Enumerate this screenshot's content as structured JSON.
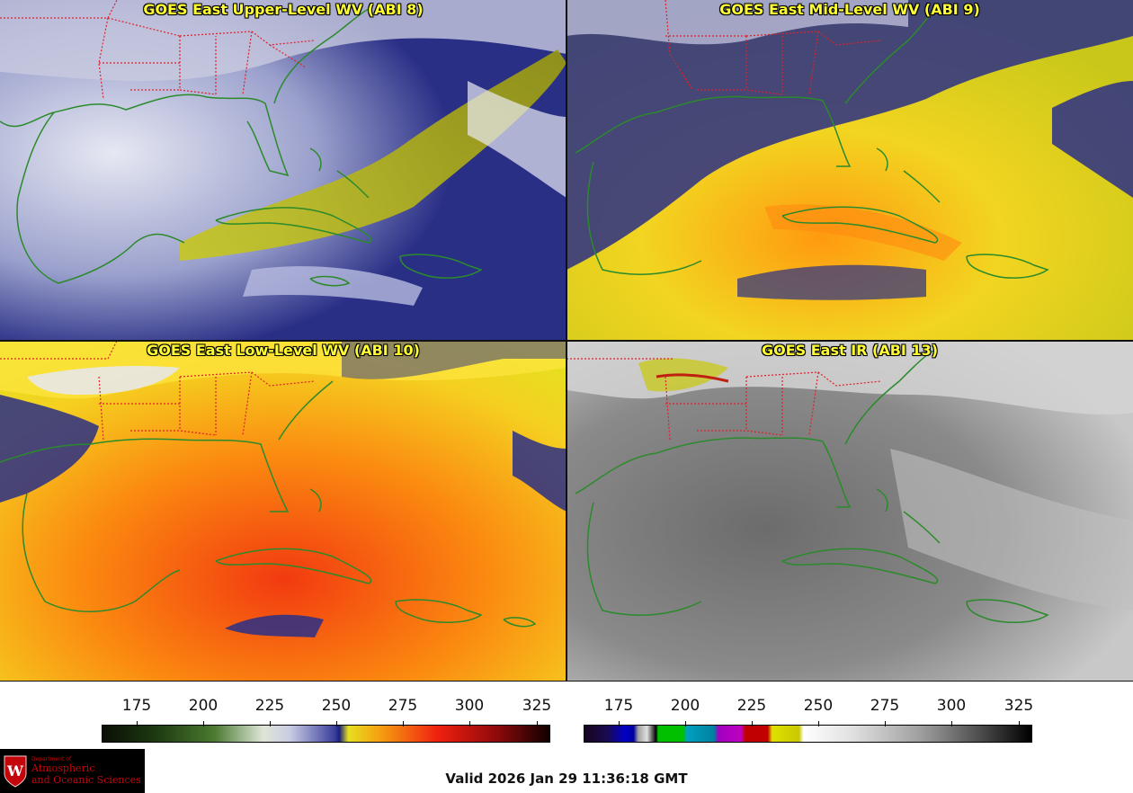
{
  "panels": [
    {
      "title": "GOES East Upper-Level WV (ABI 8)"
    },
    {
      "title": "GOES East Mid-Level WV (ABI 9)"
    },
    {
      "title": "GOES East Low-Level WV (ABI 10)"
    },
    {
      "title": "GOES East IR (ABI 13)"
    }
  ],
  "colorbars": [
    {
      "ticks": [
        "175",
        "200",
        "225",
        "250",
        "275",
        "300",
        "325"
      ]
    },
    {
      "ticks": [
        "175",
        "200",
        "225",
        "250",
        "275",
        "300",
        "325"
      ]
    }
  ],
  "valid_text": "Valid 2026 Jan 29 11:36:18 GMT",
  "logo": {
    "line1": "Department of",
    "line2": "Atmospheric",
    "line3": "and Oceanic Sciences",
    "seal_letter": "W"
  },
  "colors": {
    "coastline": "#1f8a1f",
    "borders": "#e0202a",
    "title": "#ffff33"
  }
}
